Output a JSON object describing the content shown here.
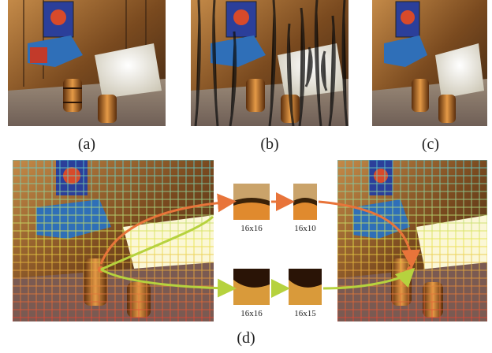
{
  "figure": {
    "captions": {
      "a": "(a)",
      "b": "(b)",
      "c": "(c)",
      "d": "(d)"
    },
    "patch_labels": {
      "top_src": "16x16",
      "top_dst": "16x10",
      "bottom_src": "16x16",
      "bottom_dst": "16x15"
    },
    "colors": {
      "wood": "#8a5a2a",
      "wood_dark": "#3b2412",
      "blue_machine": "#2f6fb8",
      "paper_white": "#f3f1e6",
      "barrel_orange": "#d9822b",
      "arrow_orange": "#e8743a",
      "arrow_green": "#b6d23e"
    }
  }
}
